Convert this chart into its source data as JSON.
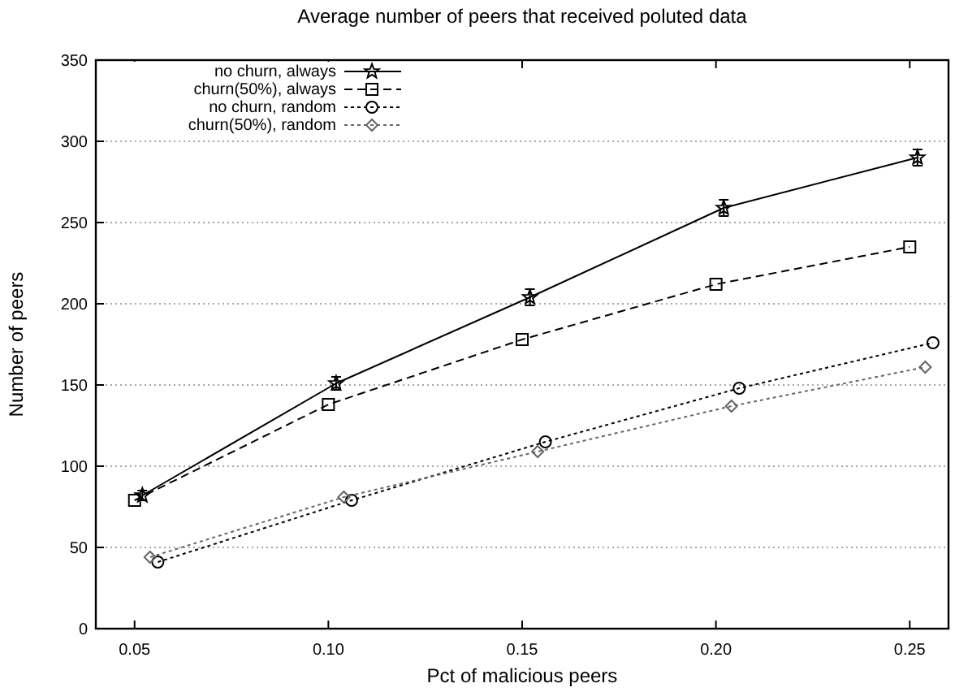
{
  "chart_data": {
    "type": "line",
    "title": "Average number of peers that received poluted data",
    "xlabel": "Pct of malicious peers",
    "ylabel": "Number of peers",
    "xlim": [
      0.04,
      0.26
    ],
    "xticks": [
      {
        "value": 0.05,
        "label": "0.05"
      },
      {
        "value": 0.1,
        "label": "0.10"
      },
      {
        "value": 0.15,
        "label": "0.15"
      },
      {
        "value": 0.2,
        "label": "0.20"
      },
      {
        "value": 0.25,
        "label": "0.25"
      }
    ],
    "ylim": [
      0,
      350
    ],
    "yticks": [
      0,
      50,
      100,
      150,
      200,
      250,
      300,
      350
    ],
    "grid": "y",
    "legend": "top left",
    "series": [
      {
        "name": "no churn, always",
        "color": "#000000",
        "marker": "star",
        "line_style": "solid",
        "x": [
          0.052,
          0.102,
          0.152,
          0.202,
          0.252
        ],
        "values": [
          82,
          151,
          204,
          259,
          290
        ],
        "errors": [
          3,
          4,
          5,
          5,
          5
        ]
      },
      {
        "name": "churn(50%), always",
        "color": "#000000",
        "marker": "square",
        "line_style": "dashed",
        "x": [
          0.05,
          0.1,
          0.15,
          0.2,
          0.25
        ],
        "values": [
          79,
          138,
          178,
          212,
          235
        ]
      },
      {
        "name": "no churn, random",
        "color": "#000000",
        "marker": "circle",
        "line_style": "dotted",
        "x": [
          0.056,
          0.106,
          0.156,
          0.206,
          0.256
        ],
        "values": [
          41,
          79,
          115,
          148,
          176
        ]
      },
      {
        "name": "churn(50%), random",
        "color": "#666666",
        "marker": "diamond",
        "line_style": "dotted",
        "x": [
          0.054,
          0.104,
          0.154,
          0.204,
          0.254
        ],
        "values": [
          44,
          81,
          109,
          137,
          161
        ]
      }
    ]
  }
}
